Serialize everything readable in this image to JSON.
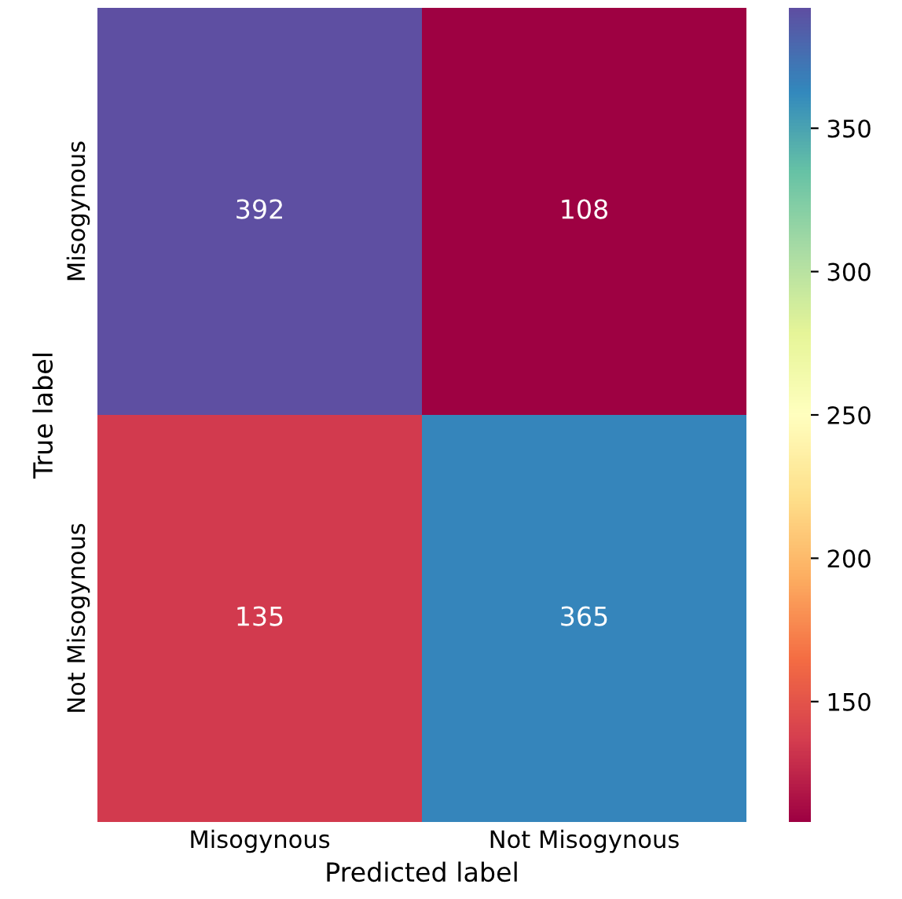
{
  "chart_data": {
    "type": "heatmap",
    "xlabel": "Predicted label",
    "ylabel": "True label",
    "categories": [
      "Misogynous",
      "Not Misogynous"
    ],
    "y_categories": [
      "Misogynous",
      "Not Misogynous"
    ],
    "cells": [
      [
        392,
        108
      ],
      [
        135,
        365
      ]
    ],
    "data_labels": true,
    "clim": [
      108,
      392
    ],
    "cticks": [
      150,
      200,
      250,
      300,
      350
    ]
  }
}
